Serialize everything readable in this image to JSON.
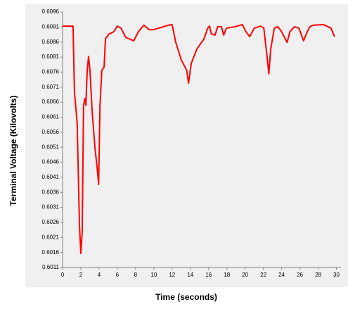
{
  "chart_data": {
    "type": "line",
    "xlabel": "Time (seconds)",
    "ylabel": "Terminal Voltage (Kilovolts)",
    "xlim": [
      0,
      30.5
    ],
    "ylim": [
      0.6011,
      0.6096
    ],
    "xticks": [
      0,
      2,
      4,
      6,
      8,
      10,
      12,
      14,
      16,
      18,
      20,
      22,
      24,
      26,
      28,
      30
    ],
    "yticks": [
      0.6011,
      0.6016,
      0.6021,
      0.6026,
      0.6031,
      0.6036,
      0.6041,
      0.6046,
      0.6051,
      0.6056,
      0.6061,
      0.6066,
      0.6071,
      0.6076,
      0.6081,
      0.6086,
      0.6091,
      0.6096
    ],
    "series": [
      {
        "color": "#ff0000",
        "x": [
          0,
          1.15,
          1.3,
          1.6,
          1.85,
          2.0,
          2.15,
          2.3,
          2.45,
          2.55,
          2.7,
          2.85,
          3.0,
          3.25,
          3.55,
          3.8,
          3.95,
          4.1,
          4.3,
          4.55,
          4.7,
          5.1,
          5.6,
          6.0,
          6.4,
          6.9,
          7.8,
          8.3,
          8.9,
          9.5,
          9.95,
          10.5,
          11.6,
          12.0,
          12.4,
          13.0,
          13.6,
          13.8,
          14.1,
          14.7,
          15.5,
          15.9,
          16.1,
          16.3,
          16.7,
          17.0,
          17.4,
          17.65,
          17.95,
          18.9,
          19.7,
          20.1,
          20.5,
          21.0,
          21.7,
          22.05,
          22.4,
          22.6,
          22.8,
          23.2,
          23.6,
          24.0,
          24.6,
          24.9,
          25.4,
          25.9,
          26.4,
          26.8,
          27.1,
          27.45,
          28.6,
          29.4,
          29.8
        ],
        "values": [
          0.60913,
          0.60913,
          0.60695,
          0.6059,
          0.6025,
          0.60157,
          0.60227,
          0.60649,
          0.60672,
          0.60649,
          0.60766,
          0.60812,
          0.60766,
          0.60625,
          0.60508,
          0.60438,
          0.60386,
          0.60649,
          0.60766,
          0.60777,
          0.60871,
          0.60887,
          0.60894,
          0.60913,
          0.60906,
          0.60876,
          0.60864,
          0.60894,
          0.60916,
          0.60901,
          0.60901,
          0.60906,
          0.60916,
          0.60918,
          0.60859,
          0.60801,
          0.60766,
          0.60723,
          0.60789,
          0.60836,
          0.60871,
          0.60906,
          0.60913,
          0.60887,
          0.60883,
          0.60911,
          0.60911,
          0.60883,
          0.60906,
          0.60911,
          0.60918,
          0.60894,
          0.60878,
          0.60906,
          0.60913,
          0.60906,
          0.60812,
          0.60754,
          0.60836,
          0.60906,
          0.60911,
          0.60894,
          0.60859,
          0.60894,
          0.60911,
          0.60906,
          0.60864,
          0.60894,
          0.60911,
          0.60916,
          0.60918,
          0.60906,
          0.60878
        ]
      }
    ]
  }
}
